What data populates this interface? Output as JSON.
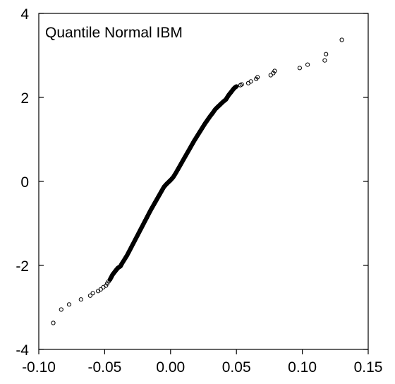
{
  "chart_data": {
    "type": "scatter",
    "title": "Quantile Normal IBM",
    "xlabel": "",
    "ylabel": "",
    "xlim": [
      -0.1,
      0.15
    ],
    "ylim": [
      -4,
      4
    ],
    "x_ticks": [
      -0.1,
      -0.05,
      0.0,
      0.05,
      0.1,
      0.15
    ],
    "x_tick_labels": [
      "-0.10",
      "-0.05",
      "0.00",
      "0.05",
      "0.10",
      "0.15"
    ],
    "y_ticks": [
      -4,
      -2,
      0,
      2,
      4
    ],
    "y_tick_labels": [
      "-4",
      "-2",
      "0",
      "2",
      "4"
    ],
    "grid": false,
    "marker": "open-circle",
    "series": [
      {
        "points": [
          [
            -0.089,
            -3.37
          ],
          [
            -0.083,
            -3.05
          ],
          [
            -0.077,
            -2.93
          ],
          [
            -0.068,
            -2.81
          ],
          [
            -0.061,
            -2.72
          ],
          [
            -0.059,
            -2.66
          ],
          [
            -0.055,
            -2.61
          ],
          [
            -0.053,
            -2.57
          ],
          [
            -0.051,
            -2.52
          ],
          [
            -0.049,
            -2.48
          ],
          [
            -0.048,
            -2.43
          ],
          [
            -0.047,
            -2.38
          ],
          [
            -0.046,
            -2.34
          ],
          [
            -0.045,
            -2.28
          ],
          [
            -0.044,
            -2.22
          ],
          [
            -0.043,
            -2.18
          ],
          [
            -0.042,
            -2.14
          ],
          [
            -0.041,
            -2.1
          ],
          [
            -0.04,
            -2.06
          ],
          [
            -0.038,
            -2.02
          ],
          [
            -0.037,
            -1.96
          ],
          [
            -0.035,
            -1.86
          ],
          [
            -0.033,
            -1.76
          ],
          [
            -0.031,
            -1.64
          ],
          [
            -0.029,
            -1.52
          ],
          [
            -0.027,
            -1.4
          ],
          [
            -0.025,
            -1.28
          ],
          [
            -0.023,
            -1.16
          ],
          [
            -0.021,
            -1.04
          ],
          [
            -0.019,
            -0.92
          ],
          [
            -0.017,
            -0.8
          ],
          [
            -0.015,
            -0.68
          ],
          [
            -0.013,
            -0.57
          ],
          [
            -0.011,
            -0.46
          ],
          [
            -0.009,
            -0.35
          ],
          [
            -0.007,
            -0.24
          ],
          [
            -0.005,
            -0.13
          ],
          [
            -0.003,
            -0.06
          ],
          [
            -0.001,
            0.0
          ],
          [
            0.0,
            0.03
          ],
          [
            0.002,
            0.1
          ],
          [
            0.004,
            0.2
          ],
          [
            0.006,
            0.31
          ],
          [
            0.008,
            0.42
          ],
          [
            0.01,
            0.53
          ],
          [
            0.012,
            0.64
          ],
          [
            0.014,
            0.75
          ],
          [
            0.016,
            0.86
          ],
          [
            0.018,
            0.97
          ],
          [
            0.02,
            1.07
          ],
          [
            0.022,
            1.17
          ],
          [
            0.024,
            1.27
          ],
          [
            0.026,
            1.37
          ],
          [
            0.028,
            1.46
          ],
          [
            0.03,
            1.55
          ],
          [
            0.032,
            1.63
          ],
          [
            0.034,
            1.72
          ],
          [
            0.036,
            1.78
          ],
          [
            0.038,
            1.84
          ],
          [
            0.04,
            1.9
          ],
          [
            0.042,
            1.95
          ],
          [
            0.043,
            2.0
          ],
          [
            0.044,
            2.05
          ],
          [
            0.045,
            2.09
          ],
          [
            0.046,
            2.13
          ],
          [
            0.047,
            2.17
          ],
          [
            0.048,
            2.21
          ],
          [
            0.049,
            2.24
          ],
          [
            0.05,
            2.26
          ],
          [
            0.053,
            2.29
          ],
          [
            0.054,
            2.31
          ],
          [
            0.059,
            2.34
          ],
          [
            0.061,
            2.38
          ],
          [
            0.065,
            2.44
          ],
          [
            0.066,
            2.48
          ],
          [
            0.076,
            2.53
          ],
          [
            0.078,
            2.58
          ],
          [
            0.079,
            2.63
          ],
          [
            0.098,
            2.7
          ],
          [
            0.104,
            2.78
          ],
          [
            0.117,
            2.88
          ],
          [
            0.118,
            3.03
          ],
          [
            0.13,
            3.37
          ]
        ]
      }
    ]
  }
}
